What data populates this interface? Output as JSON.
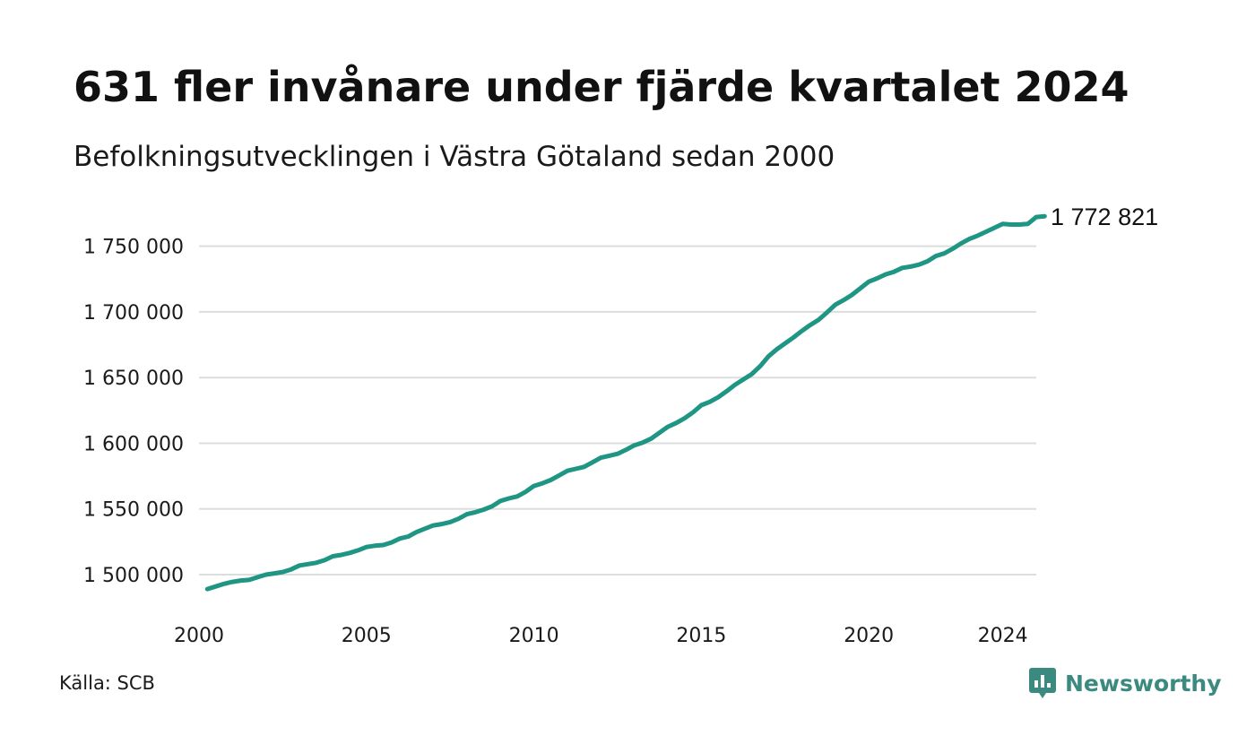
{
  "header": {
    "title": "631 fler invånare under fjärde kvartalet 2024",
    "subtitle": "Befolkningsutvecklingen i Västra Götaland sedan 2000"
  },
  "footer": {
    "source": "Källa: SCB",
    "logo_text": "Newsworthy",
    "logo_icon": "bar-chart-speech-bubble-icon",
    "logo_color": "#3a8a7f"
  },
  "chart_data": {
    "type": "line",
    "title": "631 fler invånare under fjärde kvartalet 2024",
    "subtitle": "Befolkningsutvecklingen i Västra Götaland sedan 2000",
    "xlabel": "",
    "ylabel": "",
    "xlim": [
      2000,
      2025
    ],
    "ylim": [
      1485000,
      1775000
    ],
    "grid": true,
    "line_color": "#1f9584",
    "grid_color": "#dddddd",
    "x_ticks": [
      2000,
      2005,
      2010,
      2015,
      2020,
      2024
    ],
    "x_tick_labels": [
      "2000",
      "2005",
      "2010",
      "2015",
      "2020",
      "2024"
    ],
    "y_ticks": [
      1500000,
      1550000,
      1600000,
      1650000,
      1700000,
      1750000
    ],
    "y_tick_labels": [
      "1 500 000",
      "1 550 000",
      "1 600 000",
      "1 650 000",
      "1 700 000",
      "1 750 000"
    ],
    "end_label": "1 772 821",
    "series": [
      {
        "values": [
          [
            2000.25,
            1489000
          ],
          [
            2000.5,
            1491000
          ],
          [
            2000.75,
            1493000
          ],
          [
            2001.0,
            1494500
          ],
          [
            2001.25,
            1495500
          ],
          [
            2001.5,
            1496000
          ],
          [
            2001.75,
            1498000
          ],
          [
            2002.0,
            1500000
          ],
          [
            2002.25,
            1501000
          ],
          [
            2002.5,
            1502000
          ],
          [
            2002.75,
            1504000
          ],
          [
            2003.0,
            1507000
          ],
          [
            2003.25,
            1508000
          ],
          [
            2003.5,
            1509000
          ],
          [
            2003.75,
            1511000
          ],
          [
            2004.0,
            1514000
          ],
          [
            2004.25,
            1515000
          ],
          [
            2004.5,
            1516500
          ],
          [
            2004.75,
            1518500
          ],
          [
            2005.0,
            1521000
          ],
          [
            2005.25,
            1522000
          ],
          [
            2005.5,
            1522500
          ],
          [
            2005.75,
            1524500
          ],
          [
            2006.0,
            1527500
          ],
          [
            2006.25,
            1529000
          ],
          [
            2006.5,
            1532500
          ],
          [
            2006.75,
            1535000
          ],
          [
            2007.0,
            1537500
          ],
          [
            2007.25,
            1538500
          ],
          [
            2007.5,
            1540000
          ],
          [
            2007.75,
            1542500
          ],
          [
            2008.0,
            1546000
          ],
          [
            2008.25,
            1547500
          ],
          [
            2008.5,
            1549500
          ],
          [
            2008.75,
            1552000
          ],
          [
            2009.0,
            1556000
          ],
          [
            2009.25,
            1558000
          ],
          [
            2009.5,
            1559500
          ],
          [
            2009.75,
            1563000
          ],
          [
            2010.0,
            1567500
          ],
          [
            2010.25,
            1569500
          ],
          [
            2010.5,
            1572000
          ],
          [
            2010.75,
            1575500
          ],
          [
            2011.0,
            1579000
          ],
          [
            2011.25,
            1580500
          ],
          [
            2011.5,
            1582000
          ],
          [
            2011.75,
            1585500
          ],
          [
            2012.0,
            1589000
          ],
          [
            2012.25,
            1590500
          ],
          [
            2012.5,
            1592000
          ],
          [
            2012.75,
            1595000
          ],
          [
            2013.0,
            1598500
          ],
          [
            2013.25,
            1600500
          ],
          [
            2013.5,
            1603500
          ],
          [
            2013.75,
            1608000
          ],
          [
            2014.0,
            1612500
          ],
          [
            2014.25,
            1615500
          ],
          [
            2014.5,
            1619000
          ],
          [
            2014.75,
            1623500
          ],
          [
            2015.0,
            1629000
          ],
          [
            2015.25,
            1631500
          ],
          [
            2015.5,
            1635000
          ],
          [
            2015.75,
            1639500
          ],
          [
            2016.0,
            1644500
          ],
          [
            2016.25,
            1648500
          ],
          [
            2016.5,
            1652500
          ],
          [
            2016.75,
            1658500
          ],
          [
            2017.0,
            1666000
          ],
          [
            2017.25,
            1671500
          ],
          [
            2017.5,
            1676000
          ],
          [
            2017.75,
            1680500
          ],
          [
            2018.0,
            1685500
          ],
          [
            2018.25,
            1690000
          ],
          [
            2018.5,
            1694000
          ],
          [
            2018.75,
            1699500
          ],
          [
            2019.0,
            1705500
          ],
          [
            2019.25,
            1709000
          ],
          [
            2019.5,
            1713000
          ],
          [
            2019.75,
            1718000
          ],
          [
            2020.0,
            1723000
          ],
          [
            2020.25,
            1725500
          ],
          [
            2020.5,
            1728500
          ],
          [
            2020.75,
            1730500
          ],
          [
            2021.0,
            1733500
          ],
          [
            2021.25,
            1734500
          ],
          [
            2021.5,
            1736000
          ],
          [
            2021.75,
            1738500
          ],
          [
            2022.0,
            1742500
          ],
          [
            2022.25,
            1744500
          ],
          [
            2022.5,
            1748000
          ],
          [
            2022.75,
            1752000
          ],
          [
            2023.0,
            1755500
          ],
          [
            2023.25,
            1758000
          ],
          [
            2023.5,
            1761000
          ],
          [
            2023.75,
            1764000
          ],
          [
            2024.0,
            1767000
          ],
          [
            2024.25,
            1766500
          ],
          [
            2024.5,
            1766500
          ],
          [
            2024.75,
            1767000
          ],
          [
            2025.0,
            1772190
          ],
          [
            2025.25,
            1772821
          ]
        ]
      }
    ]
  }
}
